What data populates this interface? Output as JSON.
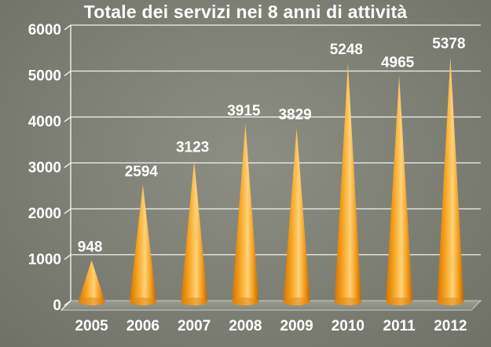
{
  "chart_data": {
    "type": "bar",
    "title": "Totale dei servizi nei 8 anni di attività",
    "categories": [
      "2005",
      "2006",
      "2007",
      "2008",
      "2009",
      "2010",
      "2011",
      "2012"
    ],
    "values": [
      948,
      2594,
      3123,
      3915,
      3829,
      5248,
      4965,
      5378
    ],
    "data_labels": [
      "948",
      "2594",
      "3123",
      "3915",
      "3829",
      "5248",
      "4965",
      "5378"
    ],
    "ylim": [
      0,
      6000
    ],
    "yticks": [
      "0",
      "1000",
      "2000",
      "3000",
      "4000",
      "5000",
      "6000"
    ],
    "grid": true,
    "mark_shape": "cone",
    "colors": {
      "background": "#7d7f74",
      "grid": "#ffffff",
      "cone_light": "#ffd27a",
      "cone_mid": "#f4a21e",
      "cone_dark": "#c86a08",
      "text": "#ffffff"
    }
  }
}
